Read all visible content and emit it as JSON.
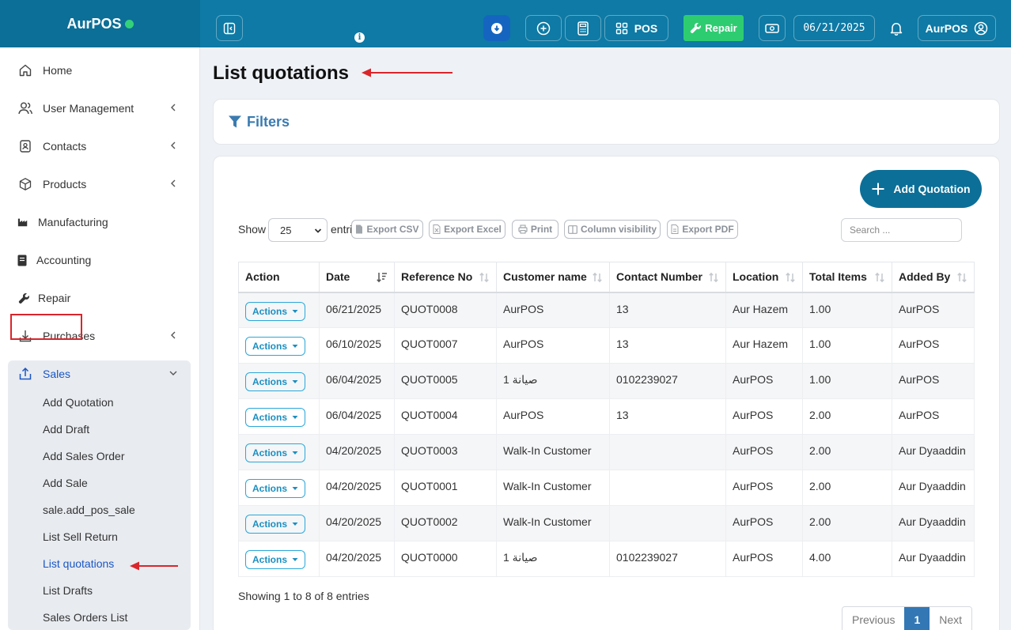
{
  "topbar": {
    "brand": "AurPOS",
    "pos_label": "POS",
    "repair_label": "Repair",
    "date": "06/21/2025",
    "user": "AurPOS"
  },
  "sidebar": {
    "items": [
      {
        "label": "Home"
      },
      {
        "label": "User Management"
      },
      {
        "label": "Contacts"
      },
      {
        "label": "Products"
      },
      {
        "label": "Manufacturing"
      },
      {
        "label": "Accounting"
      },
      {
        "label": "Repair"
      },
      {
        "label": "Purchases"
      },
      {
        "label": "Sales"
      }
    ],
    "sales_sub": [
      {
        "label": "Add Quotation"
      },
      {
        "label": "Add Draft"
      },
      {
        "label": "Add Sales Order"
      },
      {
        "label": "Add Sale"
      },
      {
        "label": "sale.add_pos_sale"
      },
      {
        "label": "List Sell Return"
      },
      {
        "label": "List quotations"
      },
      {
        "label": "List Drafts"
      },
      {
        "label": "Sales Orders List"
      }
    ]
  },
  "main": {
    "title": "List quotations",
    "filters_label": "Filters",
    "add_button": "Add Quotation",
    "show_label": "Show",
    "entries_label": "entries",
    "page_length": "25",
    "export_csv": "Export CSV",
    "export_excel": "Export Excel",
    "print": "Print",
    "column_visibility": "Column visibility",
    "export_pdf": "Export PDF",
    "search_placeholder": "Search ...",
    "columns": [
      "Action",
      "Date",
      "Reference No",
      "Customer name",
      "Contact Number",
      "Location",
      "Total Items",
      "Added By"
    ],
    "actions_label": "Actions",
    "rows": [
      {
        "date": "06/21/2025",
        "ref": "QUOT0008",
        "customer": "AurPOS",
        "contact": "13",
        "location": "Aur Hazem",
        "items": "1.00",
        "added_by": "AurPOS"
      },
      {
        "date": "06/10/2025",
        "ref": "QUOT0007",
        "customer": "AurPOS",
        "contact": "13",
        "location": "Aur Hazem",
        "items": "1.00",
        "added_by": "AurPOS"
      },
      {
        "date": "06/04/2025",
        "ref": "QUOT0005",
        "customer": "صيانة 1",
        "contact": "0102239027",
        "location": "AurPOS",
        "items": "1.00",
        "added_by": "AurPOS"
      },
      {
        "date": "06/04/2025",
        "ref": "QUOT0004",
        "customer": "AurPOS",
        "contact": "13",
        "location": "AurPOS",
        "items": "2.00",
        "added_by": "AurPOS"
      },
      {
        "date": "04/20/2025",
        "ref": "QUOT0003",
        "customer": "Walk-In Customer",
        "contact": "",
        "location": "AurPOS",
        "items": "2.00",
        "added_by": "Aur Dyaaddin"
      },
      {
        "date": "04/20/2025",
        "ref": "QUOT0001",
        "customer": "Walk-In Customer",
        "contact": "",
        "location": "AurPOS",
        "items": "2.00",
        "added_by": "Aur Dyaaddin"
      },
      {
        "date": "04/20/2025",
        "ref": "QUOT0002",
        "customer": "Walk-In Customer",
        "contact": "",
        "location": "AurPOS",
        "items": "2.00",
        "added_by": "Aur Dyaaddin"
      },
      {
        "date": "04/20/2025",
        "ref": "QUOT0000",
        "customer": "صيانة 1",
        "contact": "0102239027",
        "location": "AurPOS",
        "items": "4.00",
        "added_by": "Aur Dyaaddin"
      }
    ],
    "showing": "Showing 1 to 8 of 8 entries",
    "pager": {
      "previous": "Previous",
      "current": "1",
      "next": "Next"
    }
  },
  "colors": {
    "brand": "#0e7aa5",
    "repair": "#2ecc71",
    "accent": "#2aa7d8",
    "annotation": "#d9262c"
  }
}
